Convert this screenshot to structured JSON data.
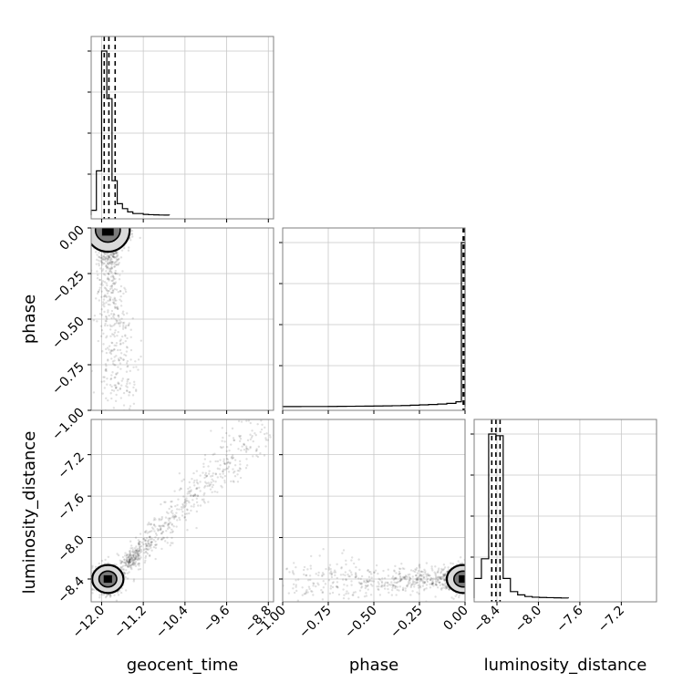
{
  "chart_data": {
    "type": "corner",
    "parameters": [
      "geocent_time",
      "phase",
      "luminosity_distance"
    ],
    "axes": {
      "geocent_time": {
        "label": "geocent_time",
        "range": [
          -12.2,
          -8.7
        ],
        "ticks": [
          -12.0,
          -11.2,
          -10.4,
          -9.6,
          -8.8
        ],
        "tick_labels": [
          "−12.0",
          "−11.2",
          "−10.4",
          "−9.6",
          "−8.8"
        ]
      },
      "phase": {
        "label": "phase",
        "range": [
          -1.0,
          0.0
        ],
        "ticks": [
          -1.0,
          -0.75,
          -0.5,
          -0.25,
          0.0
        ],
        "tick_labels": [
          "−1.00",
          "−0.75",
          "−0.50",
          "−0.25",
          "0.00"
        ]
      },
      "luminosity_distance": {
        "label": "luminosity_distance",
        "range": [
          -8.62,
          -6.86
        ],
        "ticks": [
          -8.4,
          -8.0,
          -7.6,
          -7.2
        ],
        "tick_labels": [
          "−8.4",
          "−8.0",
          "−7.6",
          "−7.2"
        ]
      }
    },
    "histograms": {
      "geocent_time": {
        "bin_edges": [
          -12.2,
          -12.1,
          -12.0,
          -11.9,
          -11.8,
          -11.7,
          -11.6,
          -11.5,
          -11.4,
          -11.3,
          -11.2,
          -11.1,
          -11.0,
          -10.9,
          -10.8,
          -10.7
        ],
        "counts": [
          3,
          27,
          100,
          71,
          21,
          7,
          4,
          2,
          1,
          1,
          0.5,
          0.3,
          0.2,
          0.1,
          0.05
        ],
        "quantile_lines": [
          -11.95,
          -11.86,
          -11.74
        ]
      },
      "phase": {
        "bin_edges": [
          -1.0,
          -0.95,
          -0.9,
          -0.85,
          -0.8,
          -0.75,
          -0.7,
          -0.65,
          -0.6,
          -0.55,
          -0.5,
          -0.45,
          -0.4,
          -0.35,
          -0.3,
          -0.25,
          -0.2,
          -0.15,
          -0.1,
          -0.05,
          -0.02,
          0.0
        ],
        "counts": [
          0.05,
          0.05,
          0.1,
          0.1,
          0.1,
          0.15,
          0.2,
          0.25,
          0.3,
          0.35,
          0.4,
          0.5,
          0.6,
          0.7,
          0.9,
          1.1,
          1.3,
          1.6,
          2.0,
          3.0,
          100
        ],
        "quantile_lines": [
          -0.01,
          0.0
        ]
      },
      "luminosity_distance": {
        "bin_edges": [
          -8.62,
          -8.55,
          -8.48,
          -8.41,
          -8.34,
          -8.27,
          -8.2,
          -8.13,
          -8.06,
          -7.99,
          -7.92,
          -7.85,
          -7.78,
          -7.71
        ],
        "counts": [
          12,
          24,
          100,
          99,
          12,
          4,
          2,
          1,
          0.6,
          0.4,
          0.3,
          0.2,
          0.1
        ],
        "quantile_lines": [
          -8.45,
          -8.41,
          -8.37
        ]
      }
    },
    "contours": [
      {
        "x": "geocent_time",
        "y": "phase",
        "center": [
          -11.88,
          -0.01
        ],
        "spread": [
          0.28,
          0.08
        ],
        "trail": {
          "from": [
            -11.9,
            -0.05
          ],
          "to": [
            -11.65,
            -0.95
          ]
        }
      },
      {
        "x": "geocent_time",
        "y": "luminosity_distance",
        "center": [
          -11.88,
          -8.4
        ],
        "spread": [
          0.2,
          0.09
        ],
        "trail": {
          "from": [
            -11.5,
            -8.25
          ],
          "to": [
            -8.9,
            -6.9
          ]
        }
      },
      {
        "x": "phase",
        "y": "luminosity_distance",
        "center": [
          -0.01,
          -8.4
        ],
        "spread": [
          0.06,
          0.09
        ],
        "trail": {
          "from": [
            -0.02,
            -8.4
          ],
          "to": [
            -0.95,
            -8.42
          ]
        }
      }
    ],
    "grid": true
  }
}
